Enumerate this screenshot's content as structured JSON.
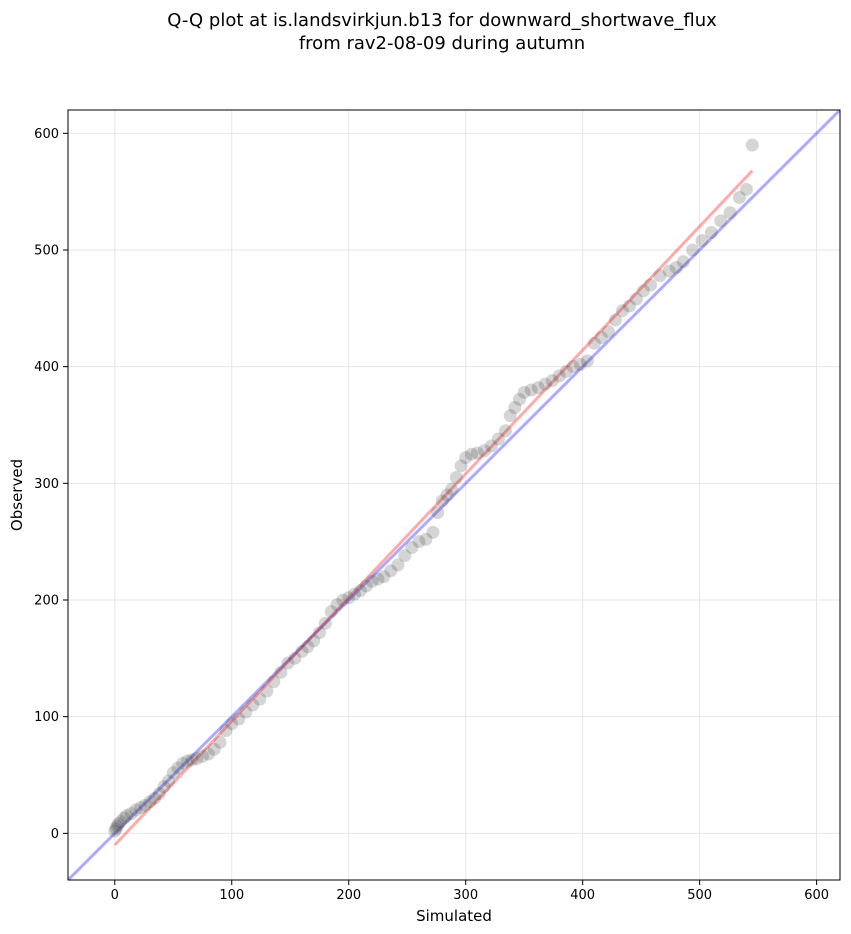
{
  "chart_data": {
    "type": "scatter",
    "title": "Q-Q plot at is.landsvirkjun.b13 for downward_shortwave_flux",
    "subtitle": "from rav2-08-09 during autumn",
    "xlabel": "Simulated",
    "ylabel": "Observed",
    "xlim": [
      -40,
      620
    ],
    "ylim": [
      -40,
      620
    ],
    "xticks": [
      0,
      100,
      200,
      300,
      400,
      500,
      600
    ],
    "yticks": [
      0,
      100,
      200,
      300,
      400,
      500,
      600
    ],
    "grid": true,
    "legend": "none",
    "reference_line": {
      "kind": "identity",
      "color": "#0000ff"
    },
    "fit_line": {
      "x": [
        0,
        545
      ],
      "y": [
        -10,
        568
      ],
      "color": "#ff0000"
    },
    "point_color": "#404040",
    "points": {
      "x": [
        0,
        1,
        2,
        3,
        5,
        8,
        10,
        14,
        18,
        22,
        26,
        30,
        34,
        38,
        42,
        46,
        50,
        54,
        58,
        62,
        66,
        70,
        75,
        80,
        85,
        90,
        95,
        100,
        106,
        112,
        118,
        124,
        130,
        136,
        142,
        148,
        154,
        160,
        165,
        170,
        175,
        180,
        185,
        190,
        195,
        200,
        205,
        210,
        215,
        220,
        225,
        230,
        236,
        242,
        248,
        254,
        260,
        266,
        272,
        276,
        280,
        284,
        288,
        292,
        296,
        300,
        305,
        310,
        316,
        322,
        328,
        334,
        338,
        342,
        346,
        350,
        356,
        362,
        368,
        374,
        380,
        386,
        392,
        398,
        404,
        410,
        416,
        422,
        428,
        434,
        440,
        446,
        452,
        458,
        466,
        474,
        480,
        486,
        494,
        502,
        510,
        518,
        526,
        534,
        540,
        545
      ],
      "y": [
        2,
        4,
        6,
        8,
        10,
        13,
        15,
        17,
        20,
        22,
        24,
        27,
        30,
        34,
        40,
        45,
        52,
        56,
        60,
        62,
        63,
        64,
        66,
        68,
        72,
        78,
        88,
        94,
        98,
        104,
        110,
        115,
        122,
        130,
        138,
        146,
        150,
        156,
        160,
        165,
        172,
        180,
        190,
        196,
        200,
        202,
        205,
        208,
        212,
        216,
        218,
        220,
        225,
        230,
        238,
        245,
        250,
        252,
        258,
        275,
        285,
        290,
        295,
        305,
        315,
        322,
        325,
        326,
        328,
        332,
        338,
        345,
        358,
        365,
        372,
        378,
        380,
        382,
        385,
        388,
        392,
        396,
        400,
        402,
        405,
        420,
        425,
        430,
        440,
        448,
        452,
        458,
        465,
        470,
        478,
        482,
        485,
        490,
        500,
        508,
        515,
        525,
        532,
        545,
        552,
        590
      ]
    }
  }
}
